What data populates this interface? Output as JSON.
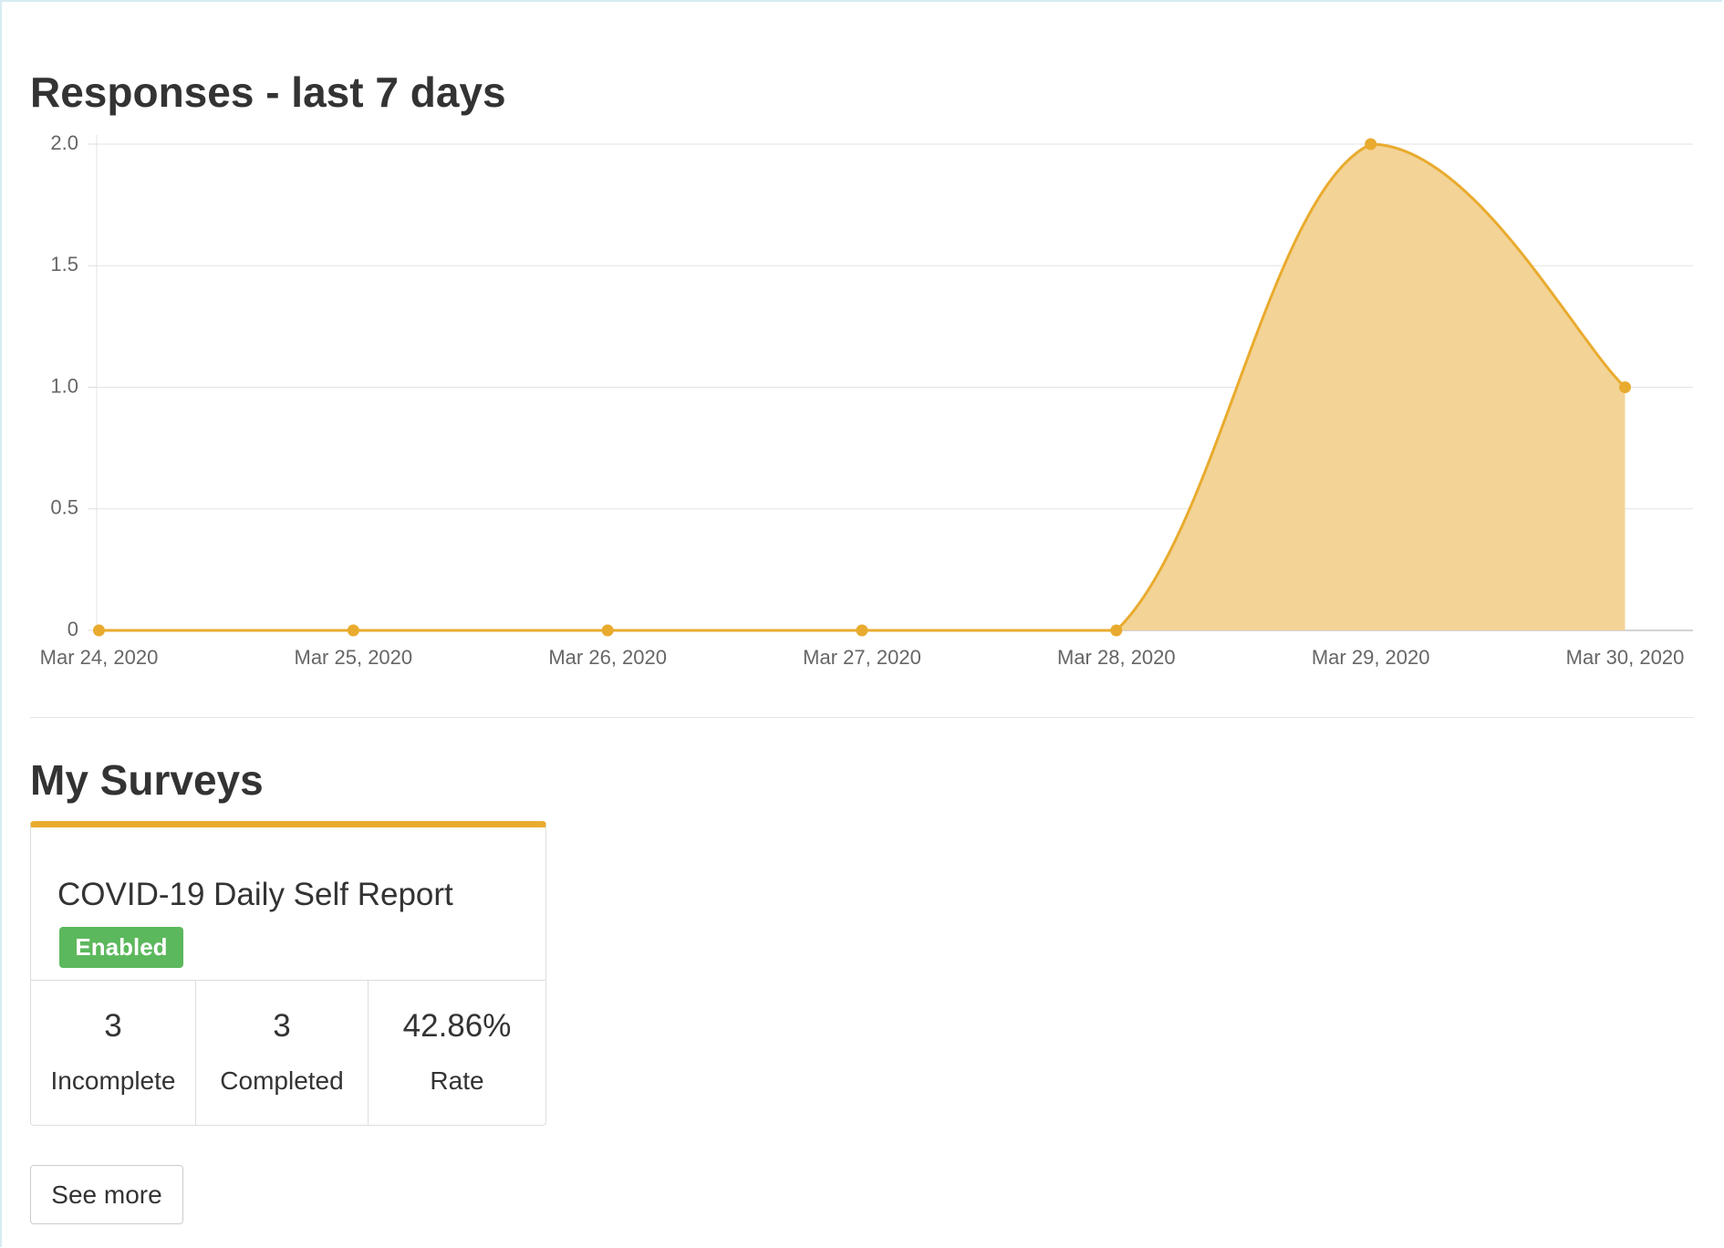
{
  "chart_data": {
    "type": "area",
    "title": "Responses - last 7 days",
    "categories": [
      "Mar 24, 2020",
      "Mar 25, 2020",
      "Mar 26, 2020",
      "Mar 27, 2020",
      "Mar 28, 2020",
      "Mar 29, 2020",
      "Mar 30, 2020"
    ],
    "values": [
      0,
      0,
      0,
      0,
      0,
      2,
      1
    ],
    "color": "#e9ab2e",
    "fill": "#f3d396",
    "ylim": [
      0,
      2
    ],
    "yticks": [
      0,
      0.5,
      {
        "value": 1,
        "label": "1.0"
      },
      1.5,
      {
        "value": 2,
        "label": "2.0"
      }
    ],
    "grid": true
  },
  "surveys": {
    "title": "My Surveys",
    "card": {
      "name": "COVID-19 Daily Self Report",
      "status": "Enabled",
      "stats": [
        {
          "value": 3,
          "label": "Incomplete"
        },
        {
          "value": 3,
          "label": "Completed"
        },
        {
          "value": "42.86%",
          "label": "Rate"
        }
      ]
    },
    "button": "See more"
  }
}
